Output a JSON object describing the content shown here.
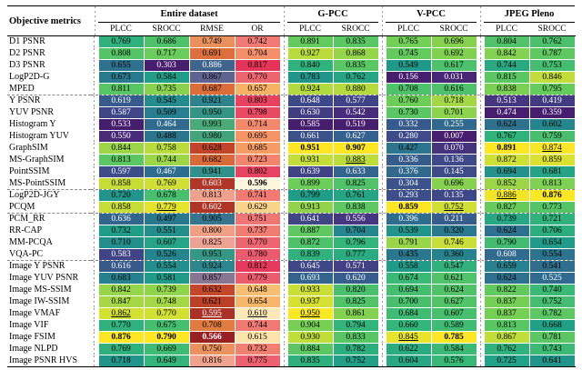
{
  "table": {
    "corner_label": "Objective metrics",
    "groups": [
      {
        "label": "Entire dataset",
        "cols": [
          "PLCC",
          "SROCC",
          "RMSE",
          "OR"
        ]
      },
      {
        "label": "G-PCC",
        "cols": [
          "PLCC",
          "SROCC"
        ]
      },
      {
        "label": "V-PCC",
        "cols": [
          "PLCC",
          "SROCC"
        ]
      },
      {
        "label": "JPEG Pleno",
        "cols": [
          "PLCC",
          "SROCC"
        ]
      }
    ],
    "columns": [
      {
        "key": "entire_plcc",
        "cmap": "viridis",
        "lower_better": false
      },
      {
        "key": "entire_srocc",
        "cmap": "viridis",
        "lower_better": false
      },
      {
        "key": "entire_rmse",
        "cmap": "rmse",
        "lower_better": true
      },
      {
        "key": "entire_or",
        "cmap": "or",
        "lower_better": true
      },
      {
        "key": "gpcc_plcc",
        "cmap": "viridis",
        "lower_better": false
      },
      {
        "key": "gpcc_srocc",
        "cmap": "viridis",
        "lower_better": false
      },
      {
        "key": "vpcc_plcc",
        "cmap": "viridis",
        "lower_better": false
      },
      {
        "key": "vpcc_srocc",
        "cmap": "viridis",
        "lower_better": false
      },
      {
        "key": "jpeg_plcc",
        "cmap": "viridis",
        "lower_better": false
      },
      {
        "key": "jpeg_srocc",
        "cmap": "viridis",
        "lower_better": false
      }
    ],
    "rows": [
      {
        "metric": "D1 PSNR",
        "values": [
          0.769,
          0.686,
          0.749,
          0.742,
          0.891,
          0.835,
          0.765,
          0.696,
          0.804,
          0.762
        ]
      },
      {
        "metric": "D2 PSNR",
        "values": [
          0.808,
          0.717,
          0.691,
          0.704,
          0.927,
          0.868,
          0.745,
          0.692,
          0.842,
          0.787
        ]
      },
      {
        "metric": "D3 PSNR",
        "values": [
          0.655,
          0.303,
          0.886,
          0.817,
          0.84,
          0.835,
          0.549,
          0.617,
          0.744,
          0.753
        ]
      },
      {
        "metric": "LogP2D-G",
        "values": [
          0.673,
          0.584,
          0.867,
          0.77,
          0.783,
          0.762,
          0.156,
          0.031,
          0.815,
          0.846
        ]
      },
      {
        "metric": "MPED",
        "values": [
          0.811,
          0.735,
          0.687,
          0.657,
          0.924,
          0.88,
          0.708,
          0.616,
          0.838,
          0.795
        ]
      },
      {
        "metric": "Y PSNR",
        "values": [
          0.619,
          0.545,
          0.921,
          0.803,
          0.648,
          0.577,
          0.76,
          0.718,
          0.513,
          0.419
        ]
      },
      {
        "metric": "YUV PSNR",
        "values": [
          0.587,
          0.509,
          0.95,
          0.798,
          0.63,
          0.542,
          0.73,
          0.701,
          0.474,
          0.359
        ]
      },
      {
        "metric": "Histogram Y",
        "values": [
          0.533,
          0.464,
          0.993,
          0.714,
          0.585,
          0.519,
          0.332,
          0.255,
          0.624,
          0.602
        ]
      },
      {
        "metric": "Histogram YUV",
        "values": [
          0.55,
          0.488,
          0.98,
          0.695,
          0.661,
          0.627,
          0.28,
          0.007,
          0.767,
          0.759
        ]
      },
      {
        "metric": "GraphSIM",
        "values": [
          0.844,
          0.758,
          0.628,
          0.685,
          0.951,
          0.907,
          0.427,
          0.07,
          0.891,
          0.874
        ]
      },
      {
        "metric": "MS-GraphSIM",
        "values": [
          0.813,
          0.744,
          0.682,
          0.723,
          0.931,
          0.883,
          0.336,
          0.136,
          0.872,
          0.859
        ]
      },
      {
        "metric": "PointSSIM",
        "values": [
          0.597,
          0.467,
          0.941,
          0.802,
          0.639,
          0.633,
          0.376,
          0.145,
          0.694,
          0.681
        ]
      },
      {
        "metric": "MS-PointSSIM",
        "values": [
          0.858,
          0.769,
          0.603,
          0.596,
          0.899,
          0.825,
          0.304,
          0.696,
          0.852,
          0.813
        ]
      },
      {
        "metric": "LogP2D-JGY",
        "values": [
          0.72,
          0.678,
          0.813,
          0.741,
          0.799,
          0.761,
          0.293,
          0.135,
          0.886,
          0.876
        ]
      },
      {
        "metric": "PCQM",
        "values": [
          0.858,
          0.779,
          0.602,
          0.629,
          0.913,
          0.838,
          0.859,
          0.752,
          0.827,
          0.773
        ]
      },
      {
        "metric": "PCM_RR",
        "values": [
          0.636,
          0.497,
          0.905,
          0.751,
          0.641,
          0.556,
          0.396,
          0.211,
          0.739,
          0.721
        ]
      },
      {
        "metric": "RR-CAP",
        "values": [
          0.732,
          0.551,
          0.8,
          0.737,
          0.887,
          0.704,
          0.539,
          0.32,
          0.624,
          0.706
        ]
      },
      {
        "metric": "MM-PCQA",
        "values": [
          0.71,
          0.607,
          0.825,
          0.77,
          0.872,
          0.796,
          0.791,
          0.746,
          0.79,
          0.654
        ]
      },
      {
        "metric": "VQA-PC",
        "values": [
          0.583,
          0.526,
          0.953,
          0.78,
          0.839,
          0.777,
          0.435,
          0.36,
          0.608,
          0.554
        ]
      },
      {
        "metric": "Image Y PSNR",
        "values": [
          0.616,
          0.554,
          0.924,
          0.812,
          0.645,
          0.571,
          0.558,
          0.547,
          0.659,
          0.541
        ]
      },
      {
        "metric": "Image YUV PSNR",
        "values": [
          0.683,
          0.581,
          0.857,
          0.779,
          0.693,
          0.62,
          0.674,
          0.621,
          0.624,
          0.525
        ]
      },
      {
        "metric": "Image MS-SSIM",
        "values": [
          0.842,
          0.739,
          0.632,
          0.648,
          0.933,
          0.82,
          0.694,
          0.624,
          0.822,
          0.74
        ]
      },
      {
        "metric": "Image IW-SSIM",
        "values": [
          0.847,
          0.748,
          0.621,
          0.654,
          0.937,
          0.825,
          0.7,
          0.627,
          0.837,
          0.752
        ]
      },
      {
        "metric": "Image VMAF",
        "values": [
          0.862,
          0.77,
          0.595,
          0.61,
          0.95,
          0.861,
          0.684,
          0.607,
          0.837,
          0.782
        ]
      },
      {
        "metric": "Image VIF",
        "values": [
          0.77,
          0.675,
          0.708,
          0.744,
          0.904,
          0.794,
          0.66,
          0.589,
          0.813,
          0.668
        ]
      },
      {
        "metric": "Image FSIM",
        "values": [
          0.876,
          0.79,
          0.566,
          0.615,
          0.93,
          0.833,
          0.845,
          0.785,
          0.867,
          0.781
        ]
      },
      {
        "metric": "Image NLPD",
        "values": [
          0.769,
          0.669,
          0.75,
          0.732,
          0.884,
          0.782,
          0.622,
          0.584,
          0.762,
          0.743
        ]
      },
      {
        "metric": "Image PSNR HVS",
        "values": [
          0.718,
          0.649,
          0.816,
          0.775,
          0.835,
          0.752,
          0.604,
          0.576,
          0.725,
          0.641
        ]
      }
    ],
    "group_breaks_before": [
      5,
      13,
      15,
      19
    ],
    "gap_after_cols": [
      3,
      5,
      7
    ],
    "emphasis": {
      "best": "bold",
      "second_best": "underline"
    }
  },
  "heatmap": {
    "viridis": [
      [
        0,
        [
          68,
          1,
          84
        ]
      ],
      [
        0.125,
        [
          72,
          40,
          120
        ]
      ],
      [
        0.25,
        [
          62,
          74,
          137
        ]
      ],
      [
        0.375,
        [
          49,
          104,
          142
        ]
      ],
      [
        0.5,
        [
          38,
          130,
          142
        ]
      ],
      [
        0.625,
        [
          31,
          158,
          137
        ]
      ],
      [
        0.75,
        [
          53,
          183,
          121
        ]
      ],
      [
        0.875,
        [
          110,
          206,
          88
        ]
      ],
      [
        1,
        [
          253,
          231,
          37
        ]
      ]
    ],
    "rmse": [
      [
        0,
        [
          150,
          32,
          34
        ]
      ],
      [
        0.18,
        [
          203,
          77,
          44
        ]
      ],
      [
        0.35,
        [
          228,
          129,
          66
        ]
      ],
      [
        0.5,
        [
          240,
          158,
          118
        ]
      ],
      [
        0.62,
        [
          238,
          163,
          152
        ]
      ],
      [
        0.72,
        [
          70,
          88,
          142
        ]
      ],
      [
        0.85,
        [
          41,
          139,
          141
        ]
      ],
      [
        1,
        [
          74,
          170,
          120
        ]
      ]
    ],
    "or": [
      [
        0,
        [
          253,
          246,
          221
        ]
      ],
      [
        0.12,
        [
          250,
          219,
          148
        ]
      ],
      [
        0.3,
        [
          246,
          172,
          94
        ]
      ],
      [
        0.5,
        [
          244,
          141,
          106
        ]
      ],
      [
        0.7,
        [
          240,
          118,
          118
        ]
      ],
      [
        0.85,
        [
          234,
          88,
          108
        ]
      ],
      [
        1,
        [
          229,
          52,
          88
        ]
      ]
    ]
  },
  "style": {
    "rule_color": "#000000",
    "dashed_separator_color": "#999999",
    "background": "#ffffff"
  }
}
